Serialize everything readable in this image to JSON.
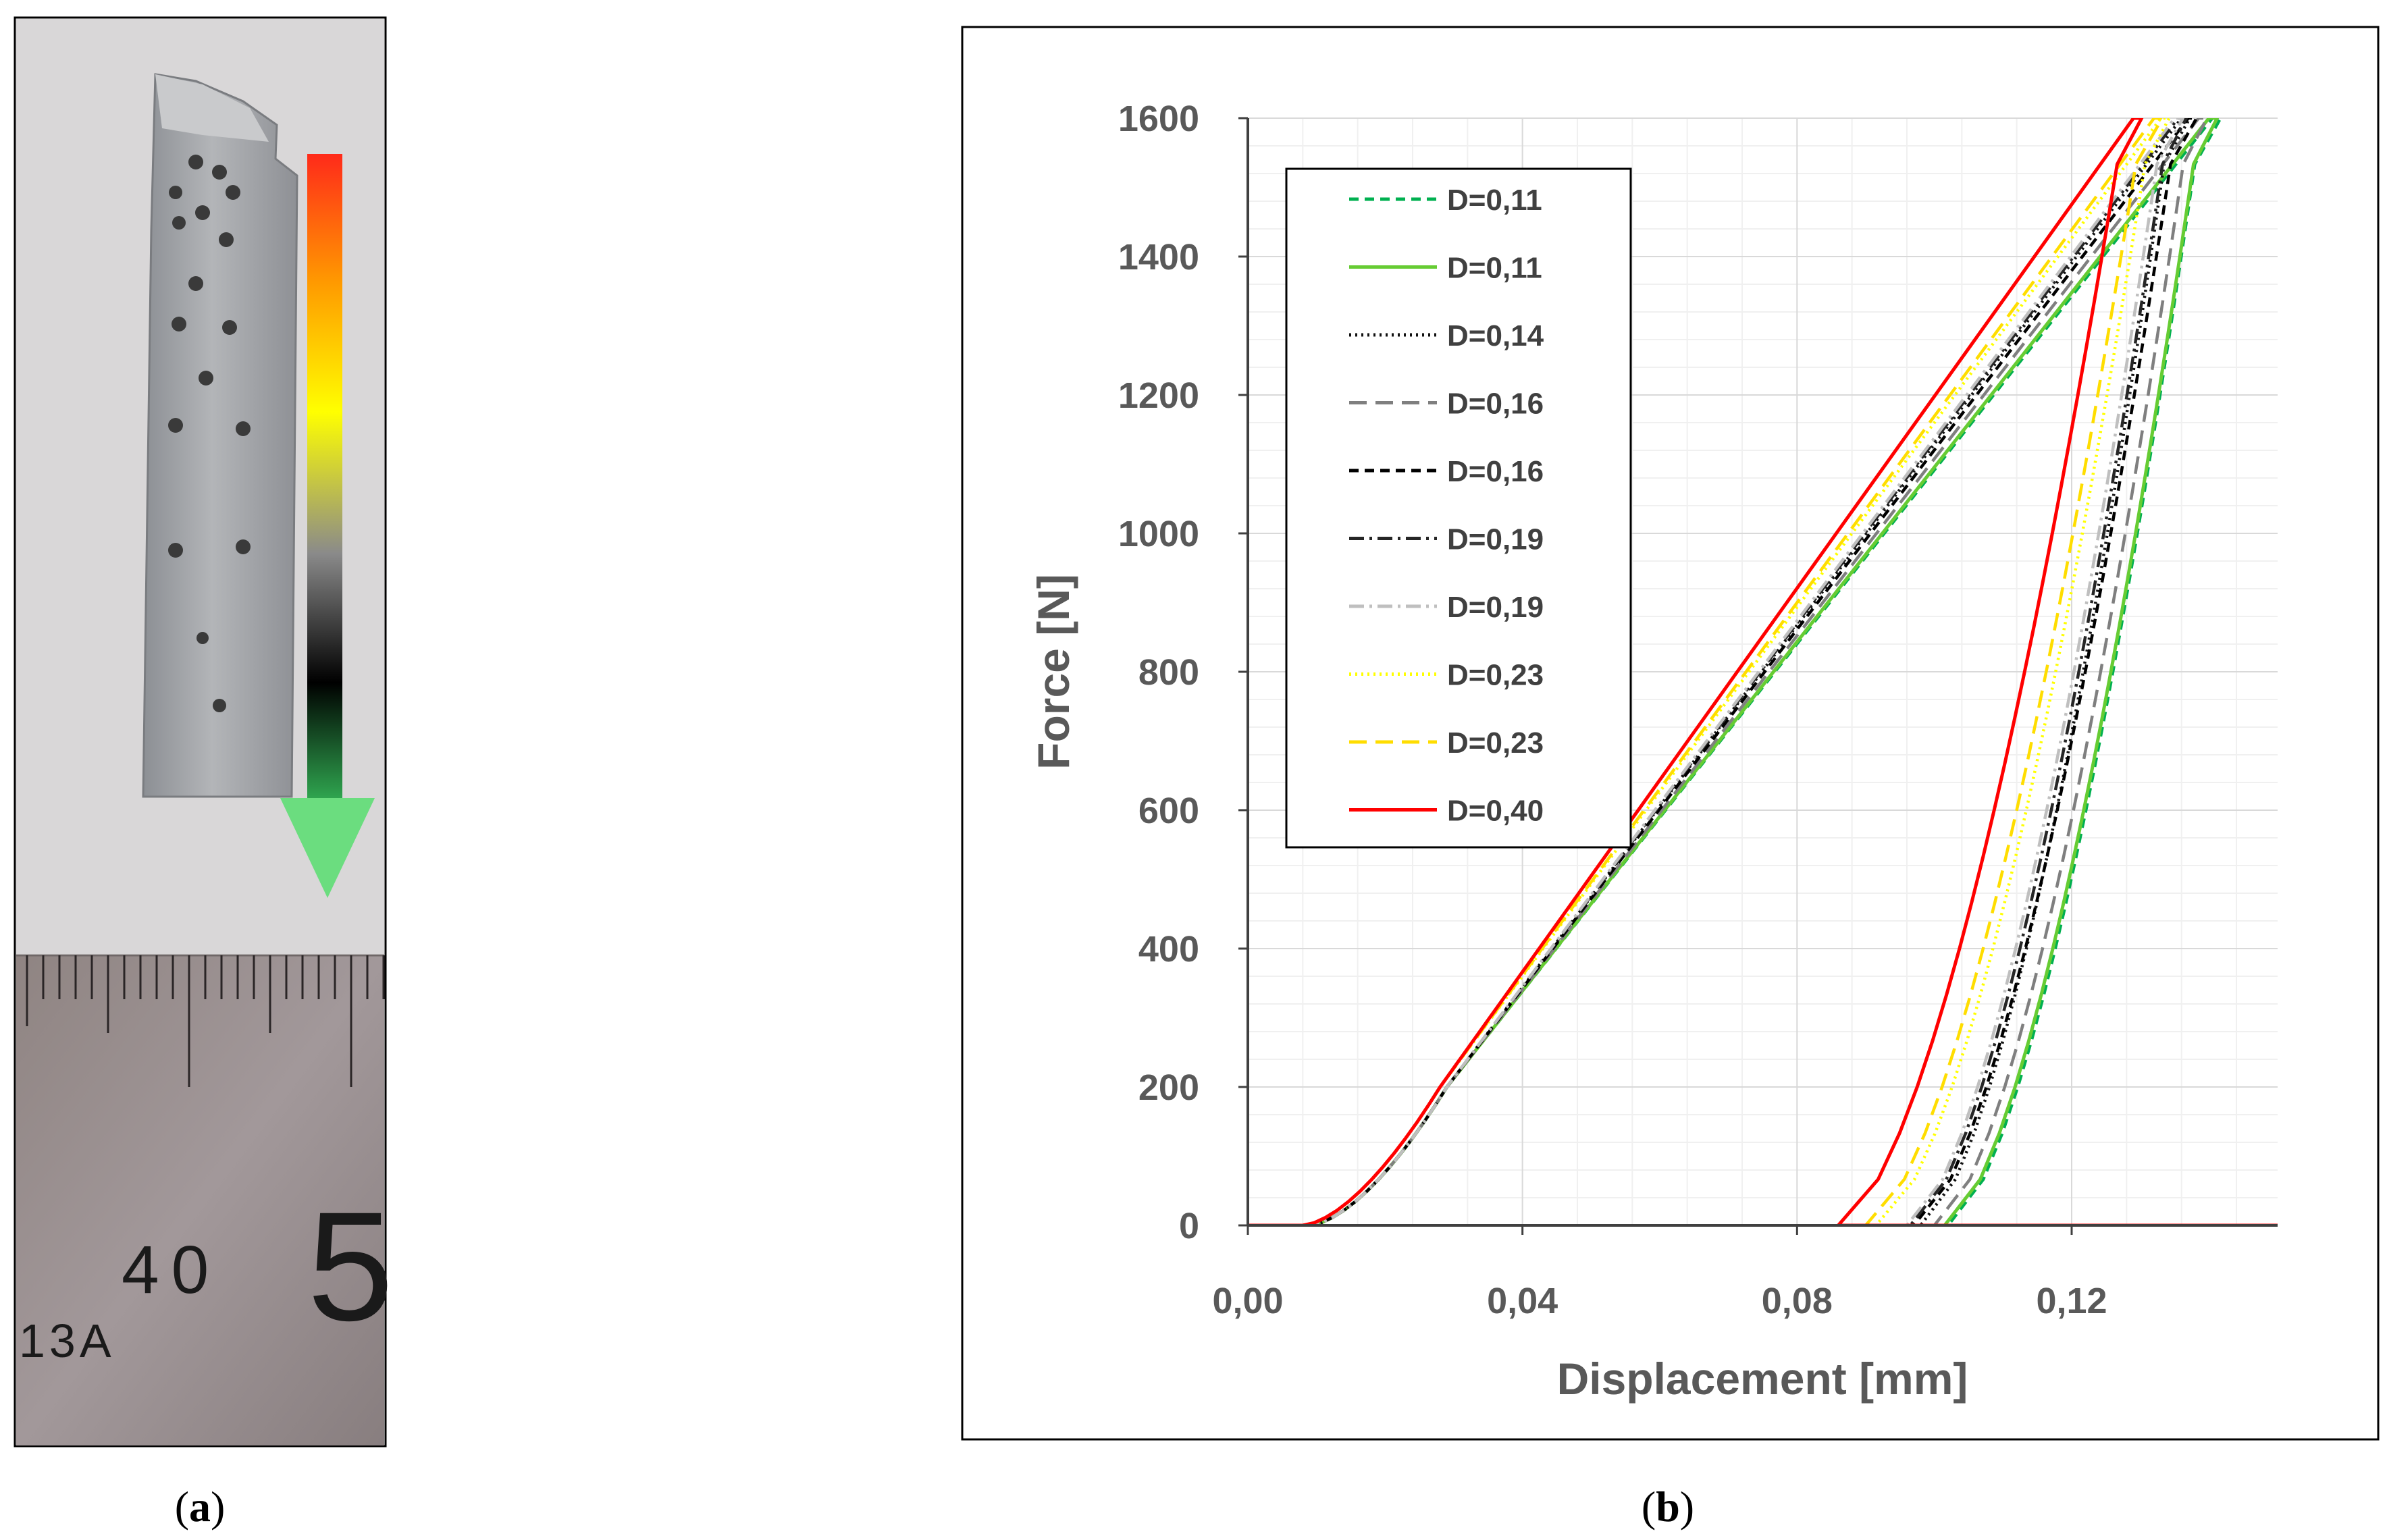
{
  "panels": {
    "a": {
      "caption_open": "(",
      "caption_letter": "a",
      "caption_close": ")"
    },
    "b": {
      "caption_open": "(",
      "caption_letter": "b",
      "caption_close": ")"
    }
  },
  "photo": {
    "ruler_labels": [
      "40",
      "5",
      "13A"
    ],
    "gradient_colors": [
      "#ff2a1a",
      "#ff9a00",
      "#ffff00",
      "#8a8a8a",
      "#000000",
      "#2fa54f"
    ],
    "arrow_color": "#6bdd7f"
  },
  "chart_data": {
    "type": "line",
    "xlabel": "Displacement [mm]",
    "ylabel": "Force [N]",
    "xlim": [
      0,
      0.15
    ],
    "ylim": [
      0,
      1600
    ],
    "xticks": [
      0.0,
      0.04,
      0.08,
      0.12
    ],
    "xtick_labels": [
      "0,00",
      "0,04",
      "0,08",
      "0,12"
    ],
    "yticks": [
      0,
      200,
      400,
      600,
      800,
      1000,
      1200,
      1400,
      1600
    ],
    "ytick_labels": [
      "0",
      "200",
      "400",
      "600",
      "800",
      "1000",
      "1200",
      "1400",
      "1600"
    ],
    "grid": true,
    "legend_position": "top-left",
    "series": [
      {
        "name": "D=0,11",
        "color": "#00b050",
        "style": "dashed",
        "onset": 0.009,
        "peak_x": 0.1405,
        "unload_zero": 0.102
      },
      {
        "name": "D=0,11",
        "color": "#66cc33",
        "style": "solid",
        "onset": 0.009,
        "peak_x": 0.14,
        "unload_zero": 0.1015
      },
      {
        "name": "D=0,14",
        "color": "#111111",
        "style": "dotted",
        "onset": 0.009,
        "peak_x": 0.136,
        "unload_zero": 0.098
      },
      {
        "name": "D=0,16",
        "color": "#7f7f7f",
        "style": "longdash",
        "onset": 0.009,
        "peak_x": 0.1385,
        "unload_zero": 0.1
      },
      {
        "name": "D=0,16",
        "color": "#000000",
        "style": "dashed",
        "onset": 0.009,
        "peak_x": 0.137,
        "unload_zero": 0.097
      },
      {
        "name": "D=0,19",
        "color": "#262626",
        "style": "dashdot",
        "onset": 0.009,
        "peak_x": 0.1355,
        "unload_zero": 0.0965
      },
      {
        "name": "D=0,19",
        "color": "#bfbfbf",
        "style": "dashdot",
        "onset": 0.009,
        "peak_x": 0.135,
        "unload_zero": 0.096
      },
      {
        "name": "D=0,23",
        "color": "#ffff00",
        "style": "dotted",
        "onset": 0.008,
        "peak_x": 0.133,
        "unload_zero": 0.0915
      },
      {
        "name": "D=0,23",
        "color": "#ffdd00",
        "style": "longdash",
        "onset": 0.008,
        "peak_x": 0.132,
        "unload_zero": 0.09
      },
      {
        "name": "D=0,40",
        "color": "#ff0000",
        "style": "solid",
        "onset": 0.008,
        "peak_x": 0.129,
        "unload_zero": 0.086
      }
    ]
  }
}
